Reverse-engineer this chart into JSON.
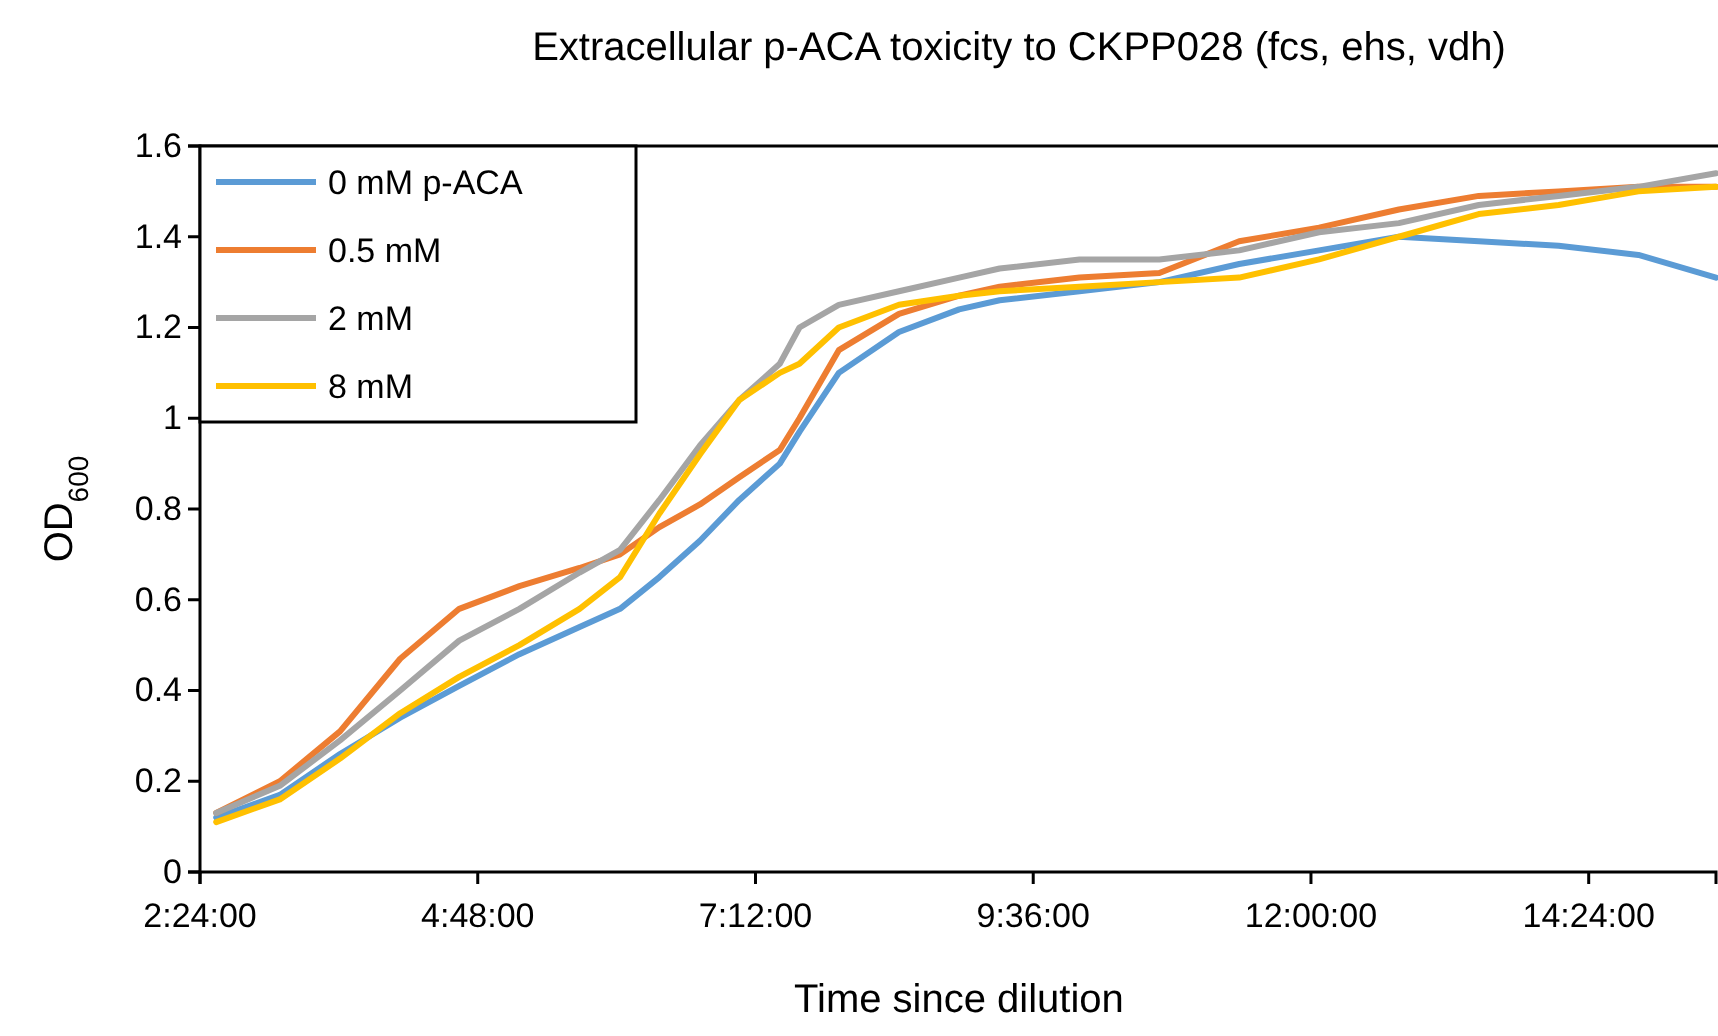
{
  "chart_data": {
    "type": "line",
    "title": "Extracellular p-ACA toxicity to CKPP028 (fcs, ehs, vdh)",
    "xlabel": "Time since dilution",
    "ylabel": "OD$_{600}$",
    "x": [
      2.54,
      3.09,
      3.61,
      4.13,
      4.64,
      5.16,
      5.68,
      6.03,
      6.37,
      6.72,
      7.06,
      7.41,
      7.58,
      7.92,
      8.44,
      8.96,
      9.31,
      10.0,
      10.69,
      11.38,
      12.07,
      12.76,
      13.45,
      14.14,
      14.83,
      15.5
    ],
    "series": [
      {
        "name": "0 mM p-ACA",
        "color": "#5b9bd5",
        "values": [
          0.12,
          0.17,
          0.26,
          0.34,
          0.41,
          0.48,
          0.54,
          0.58,
          0.65,
          0.73,
          0.82,
          0.9,
          0.97,
          1.1,
          1.19,
          1.24,
          1.26,
          1.28,
          1.3,
          1.34,
          1.37,
          1.4,
          1.39,
          1.38,
          1.36,
          1.31
        ]
      },
      {
        "name": "0.5 mM",
        "color": "#ed7d31",
        "values": [
          0.13,
          0.2,
          0.31,
          0.47,
          0.58,
          0.63,
          0.67,
          0.7,
          0.76,
          0.81,
          0.87,
          0.93,
          1.0,
          1.15,
          1.23,
          1.27,
          1.29,
          1.31,
          1.32,
          1.39,
          1.42,
          1.46,
          1.49,
          1.5,
          1.51,
          1.51
        ]
      },
      {
        "name": "2 mM",
        "color": "#a5a5a5",
        "values": [
          0.13,
          0.19,
          0.29,
          0.4,
          0.51,
          0.58,
          0.66,
          0.71,
          0.82,
          0.94,
          1.04,
          1.12,
          1.2,
          1.25,
          1.28,
          1.31,
          1.33,
          1.35,
          1.35,
          1.37,
          1.41,
          1.43,
          1.47,
          1.49,
          1.51,
          1.54
        ]
      },
      {
        "name": "8 mM",
        "color": "#ffc000",
        "values": [
          0.11,
          0.16,
          0.25,
          0.35,
          0.43,
          0.5,
          0.58,
          0.65,
          0.79,
          0.92,
          1.04,
          1.1,
          1.12,
          1.2,
          1.25,
          1.27,
          1.28,
          1.29,
          1.3,
          1.31,
          1.35,
          1.4,
          1.45,
          1.47,
          1.5,
          1.51
        ]
      }
    ],
    "xlim": [
      2.4,
      15.5
    ],
    "xticks": [
      {
        "value": 2.4,
        "label": "2:24:00"
      },
      {
        "value": 4.8,
        "label": "4:48:00"
      },
      {
        "value": 7.2,
        "label": "7:12:00"
      },
      {
        "value": 9.6,
        "label": "9:36:00"
      },
      {
        "value": 12,
        "label": "12:00:00"
      },
      {
        "value": 14.4,
        "label": "14:24:00"
      }
    ],
    "ylim": [
      0,
      1.6
    ],
    "yticks": [
      0,
      0.2,
      0.4,
      0.6,
      0.8,
      1,
      1.2,
      1.4,
      1.6
    ],
    "legend": "top left",
    "line_style": "solid"
  }
}
